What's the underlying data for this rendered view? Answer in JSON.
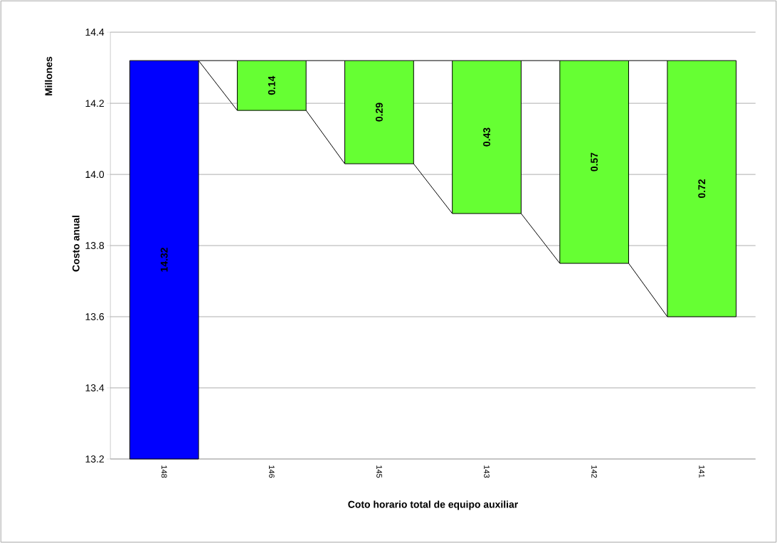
{
  "chart_data": {
    "type": "bar",
    "xlabel": "Coto horario total de equipo auxiliar",
    "ylabel": "Costo anual",
    "annotations": [
      "Millones"
    ],
    "categories": [
      "148",
      "146",
      "145",
      "143",
      "142",
      "141"
    ],
    "values": [
      14.32,
      0.14,
      0.29,
      0.43,
      0.57,
      0.72
    ],
    "base": [
      null,
      14.18,
      14.03,
      13.89,
      13.75,
      13.6
    ],
    "colors": [
      "#0000ff",
      "#66ff33",
      "#66ff33",
      "#66ff33",
      "#66ff33",
      "#66ff33"
    ],
    "data_labels": true,
    "ylim": [
      13.2,
      14.4
    ],
    "yticks": [
      13.2,
      13.4,
      13.6,
      13.8,
      {
        "value": 14.0,
        "label": "14.0"
      },
      14.2,
      14.4
    ],
    "grid": "y"
  }
}
